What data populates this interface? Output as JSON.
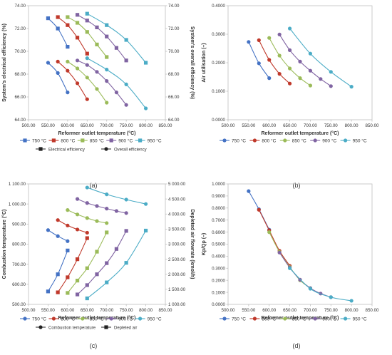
{
  "figure": {
    "series_names": [
      "750 °C",
      "800 °C",
      "850 °C",
      "900 °C",
      "950 °C"
    ],
    "series_colors": [
      "#4472c4",
      "#c0392b",
      "#9bbb59",
      "#8064a2",
      "#4bacc6"
    ],
    "axis_color": "#bfbfbf",
    "line_color": "#222222"
  },
  "chart_data": [
    {
      "panel": "(a)",
      "type": "line",
      "xlabel": "Reformer outlet temperature (°C)",
      "ylabel": "System's electrical efficiency (%)",
      "ylabel_right": "System's overall efficiency (%)",
      "xlim": [
        500,
        850
      ],
      "xticks": [
        500,
        550,
        600,
        650,
        700,
        750,
        800,
        850
      ],
      "xtick_labels": [
        "500.00",
        "550.00",
        "600.00",
        "650.00",
        "700.00",
        "750.00",
        "800.00",
        "850.00"
      ],
      "ylim": [
        64,
        74
      ],
      "yticks": [
        64,
        66,
        68,
        70,
        72,
        74
      ],
      "ytick_labels": [
        "64.00",
        "66.00",
        "68.00",
        "70.00",
        "72.00",
        "74.00"
      ],
      "ylim_right": [
        64,
        74
      ],
      "yticks_right": [
        64,
        66,
        68,
        70,
        72,
        74
      ],
      "ytick_labels_right": [
        "64.00",
        "66.00",
        "68.00",
        "70.00",
        "72.00",
        "74.00"
      ],
      "legend": {
        "placement": "bottom",
        "series": [
          "750 °C",
          "800 °C",
          "850 °C",
          "900 °C",
          "950 °C"
        ],
        "styles": [
          "Electrical efficiency",
          "Overall efficiency"
        ]
      },
      "series": [
        {
          "name": "750 °C",
          "group": "Electrical efficiency",
          "marker": "square",
          "axis": "left",
          "x": [
            550,
            575,
            600
          ],
          "y": [
            72.9,
            72.0,
            70.4
          ]
        },
        {
          "name": "800 °C",
          "group": "Electrical efficiency",
          "marker": "square",
          "axis": "left",
          "x": [
            575,
            600,
            625,
            650
          ],
          "y": [
            73.0,
            72.3,
            71.2,
            69.8
          ]
        },
        {
          "name": "850 °C",
          "group": "Electrical efficiency",
          "marker": "square",
          "axis": "left",
          "x": [
            600,
            625,
            650,
            675,
            700
          ],
          "y": [
            73.0,
            72.5,
            71.7,
            70.6,
            69.5
          ]
        },
        {
          "name": "900 °C",
          "group": "Electrical efficiency",
          "marker": "square",
          "axis": "left",
          "x": [
            625,
            650,
            675,
            700,
            725,
            750
          ],
          "y": [
            73.2,
            72.7,
            72.1,
            71.3,
            70.3,
            69.2
          ]
        },
        {
          "name": "950 °C",
          "group": "Electrical efficiency",
          "marker": "square",
          "axis": "left",
          "x": [
            650,
            700,
            750,
            800
          ],
          "y": [
            73.3,
            72.3,
            71.0,
            69.0
          ]
        },
        {
          "name": "750 °C",
          "group": "Overall efficiency",
          "marker": "circle",
          "axis": "right",
          "x": [
            550,
            575,
            600
          ],
          "y": [
            69.0,
            68.1,
            66.4
          ]
        },
        {
          "name": "800 °C",
          "group": "Overall efficiency",
          "marker": "circle",
          "axis": "right",
          "x": [
            575,
            600,
            625,
            650
          ],
          "y": [
            69.1,
            68.3,
            67.2,
            65.8
          ]
        },
        {
          "name": "850 °C",
          "group": "Overall efficiency",
          "marker": "circle",
          "axis": "right",
          "x": [
            600,
            625,
            650,
            675,
            700
          ],
          "y": [
            69.1,
            68.5,
            67.7,
            66.7,
            65.5
          ]
        },
        {
          "name": "900 °C",
          "group": "Overall efficiency",
          "marker": "circle",
          "axis": "right",
          "x": [
            625,
            650,
            675,
            700,
            725,
            750
          ],
          "y": [
            69.2,
            68.8,
            68.2,
            67.4,
            66.4,
            65.3
          ]
        },
        {
          "name": "950 °C",
          "group": "Overall efficiency",
          "marker": "circle",
          "axis": "right",
          "x": [
            650,
            700,
            750,
            800
          ],
          "y": [
            69.4,
            68.4,
            67.1,
            65.0
          ]
        }
      ]
    },
    {
      "panel": "(b)",
      "type": "line",
      "xlabel": "Reformer outlet temperature (°C)",
      "ylabel": "Air utilisation (–)",
      "xlim": [
        500,
        850
      ],
      "xticks": [
        500,
        550,
        600,
        650,
        700,
        750,
        800,
        850
      ],
      "xtick_labels": [
        "500.00",
        "550.00",
        "600.00",
        "650.00",
        "700.00",
        "750.00",
        "800.00",
        "850.00"
      ],
      "ylim": [
        0,
        0.4
      ],
      "yticks": [
        0,
        0.1,
        0.2,
        0.3,
        0.4
      ],
      "ytick_labels": [
        "0.0000",
        "0.1000",
        "0.2000",
        "0.3000",
        "0.4000"
      ],
      "legend": {
        "placement": "bottom",
        "series": [
          "750 °C",
          "800 °C",
          "850 °C",
          "900 °C",
          "950 °C"
        ]
      },
      "series": [
        {
          "name": "750 °C",
          "marker": "circle",
          "x": [
            550,
            575,
            600
          ],
          "y": [
            0.273,
            0.198,
            0.146
          ]
        },
        {
          "name": "800 °C",
          "marker": "circle",
          "x": [
            575,
            600,
            625,
            650
          ],
          "y": [
            0.279,
            0.21,
            0.161,
            0.127
          ]
        },
        {
          "name": "850 °C",
          "marker": "circle",
          "x": [
            600,
            625,
            650,
            675,
            700
          ],
          "y": [
            0.287,
            0.225,
            0.18,
            0.146,
            0.12
          ]
        },
        {
          "name": "900 °C",
          "marker": "circle",
          "x": [
            625,
            650,
            675,
            700,
            725,
            750
          ],
          "y": [
            0.299,
            0.244,
            0.204,
            0.172,
            0.143,
            0.118
          ]
        },
        {
          "name": "950 °C",
          "marker": "circle",
          "x": [
            650,
            700,
            750,
            800
          ],
          "y": [
            0.32,
            0.232,
            0.168,
            0.116
          ]
        }
      ]
    },
    {
      "panel": "(c)",
      "type": "line",
      "xlabel": "Reformer outlet temperature (°C)",
      "ylabel": "Combustion temperature (°C)",
      "ylabel_right": "Depleted air flowrate (kmol/h)",
      "xlim": [
        500,
        850
      ],
      "xticks": [
        500,
        550,
        600,
        650,
        700,
        750,
        800,
        850
      ],
      "xtick_labels": [
        "500.00",
        "550.00",
        "600.00",
        "650.00",
        "700.00",
        "750.00",
        "800.00",
        "850.00"
      ],
      "ylim": [
        500,
        1100
      ],
      "yticks": [
        500,
        600,
        700,
        800,
        900,
        1000,
        1100
      ],
      "ytick_labels": [
        "500.00",
        "600.00",
        "700.00",
        "800.00",
        "900.00",
        "1 000.00",
        "1 100.00"
      ],
      "ylim_right": [
        1000,
        5000
      ],
      "yticks_right": [
        1000,
        1500,
        2000,
        2500,
        3000,
        3500,
        4000,
        4500,
        5000
      ],
      "ytick_labels_right": [
        "1 000.00",
        "1 500.00",
        "2 000.00",
        "2 500.00",
        "3 000.00",
        "3 500.00",
        "4 000.00",
        "4 500.00",
        "5 000.00"
      ],
      "legend": {
        "placement": "bottom",
        "series": [
          "750 °C",
          "800 °C",
          "850 °C",
          "900 °C",
          "950 °C"
        ],
        "styles": [
          "Combustion temperature",
          "Depleted air"
        ]
      },
      "series": [
        {
          "name": "750 °C",
          "group": "Combustion temperature",
          "marker": "circle",
          "axis": "left",
          "x": [
            550,
            575,
            600
          ],
          "y": [
            870,
            840,
            815
          ]
        },
        {
          "name": "800 °C",
          "group": "Combustion temperature",
          "marker": "circle",
          "axis": "left",
          "x": [
            575,
            600,
            625,
            650
          ],
          "y": [
            920,
            893,
            873,
            857
          ]
        },
        {
          "name": "850 °C",
          "group": "Combustion temperature",
          "marker": "circle",
          "axis": "left",
          "x": [
            600,
            625,
            650,
            675,
            700
          ],
          "y": [
            970,
            948,
            930,
            915,
            905
          ]
        },
        {
          "name": "900 °C",
          "group": "Combustion temperature",
          "marker": "circle",
          "axis": "left",
          "x": [
            625,
            650,
            675,
            700,
            725,
            750
          ],
          "y": [
            1025,
            1005,
            990,
            977,
            965,
            955
          ]
        },
        {
          "name": "950 °C",
          "group": "Combustion temperature",
          "marker": "circle",
          "axis": "left",
          "x": [
            650,
            700,
            750,
            800
          ],
          "y": [
            1082,
            1048,
            1022,
            1000
          ]
        },
        {
          "name": "750 °C",
          "group": "Depleted air",
          "marker": "square",
          "axis": "right",
          "x": [
            550,
            575,
            600
          ],
          "y": [
            1430,
            2000,
            2790
          ]
        },
        {
          "name": "800 °C",
          "group": "Depleted air",
          "marker": "square",
          "axis": "right",
          "x": [
            575,
            600,
            625,
            650
          ],
          "y": [
            1400,
            1900,
            2500,
            3200
          ]
        },
        {
          "name": "850 °C",
          "group": "Depleted air",
          "marker": "square",
          "axis": "right",
          "x": [
            600,
            625,
            650,
            675,
            700
          ],
          "y": [
            1380,
            1790,
            2200,
            2750,
            3390
          ]
        },
        {
          "name": "900 °C",
          "group": "Depleted air",
          "marker": "square",
          "axis": "right",
          "x": [
            625,
            650,
            675,
            700,
            725,
            750
          ],
          "y": [
            1330,
            1640,
            2000,
            2370,
            2840,
            3440
          ]
        },
        {
          "name": "950 °C",
          "group": "Depleted air",
          "marker": "square",
          "axis": "right",
          "x": [
            650,
            700,
            750,
            800
          ],
          "y": [
            1200,
            1730,
            2380,
            3450
          ]
        }
      ]
    },
    {
      "panel": "(d)",
      "type": "line",
      "xlabel": "Reformer outlet temperature (°C)",
      "ylabel": "Kp/Qp (–)",
      "xlim": [
        500,
        850
      ],
      "xticks": [
        500,
        550,
        600,
        650,
        700,
        750,
        800,
        850
      ],
      "xtick_labels": [
        "500.00",
        "550.00",
        "600.00",
        "650.00",
        "700.00",
        "750.00",
        "800.00",
        "850.00"
      ],
      "ylim": [
        0,
        1.0
      ],
      "yticks": [
        0,
        0.1,
        0.2,
        0.3,
        0.4,
        0.5,
        0.6,
        0.7,
        0.8,
        0.9,
        1.0
      ],
      "ytick_labels": [
        "0.0000",
        "0.1000",
        "0.2000",
        "0.3000",
        "0.4000",
        "0.5000",
        "0.6000",
        "0.7000",
        "0.8000",
        "0.9000",
        "1.0000"
      ],
      "legend": {
        "placement": "bottom",
        "series": [
          "750 °C",
          "800 °C",
          "850 °C",
          "900 °C",
          "950 °C"
        ]
      },
      "series": [
        {
          "name": "750 °C",
          "marker": "circle",
          "x": [
            550,
            575,
            600
          ],
          "y": [
            0.94,
            0.79,
            0.62
          ]
        },
        {
          "name": "800 °C",
          "marker": "circle",
          "x": [
            575,
            600,
            625,
            650
          ],
          "y": [
            0.785,
            0.615,
            0.445,
            0.32
          ]
        },
        {
          "name": "850 °C",
          "marker": "circle",
          "x": [
            600,
            625,
            650,
            675,
            700
          ],
          "y": [
            0.6,
            0.435,
            0.31,
            0.2,
            0.135
          ]
        },
        {
          "name": "900 °C",
          "marker": "circle",
          "x": [
            625,
            650,
            675,
            700,
            725,
            750
          ],
          "y": [
            0.43,
            0.305,
            0.205,
            0.135,
            0.09,
            0.06
          ]
        },
        {
          "name": "950 °C",
          "marker": "circle",
          "x": [
            650,
            700,
            750,
            800
          ],
          "y": [
            0.3,
            0.13,
            0.06,
            0.03
          ]
        }
      ]
    }
  ]
}
